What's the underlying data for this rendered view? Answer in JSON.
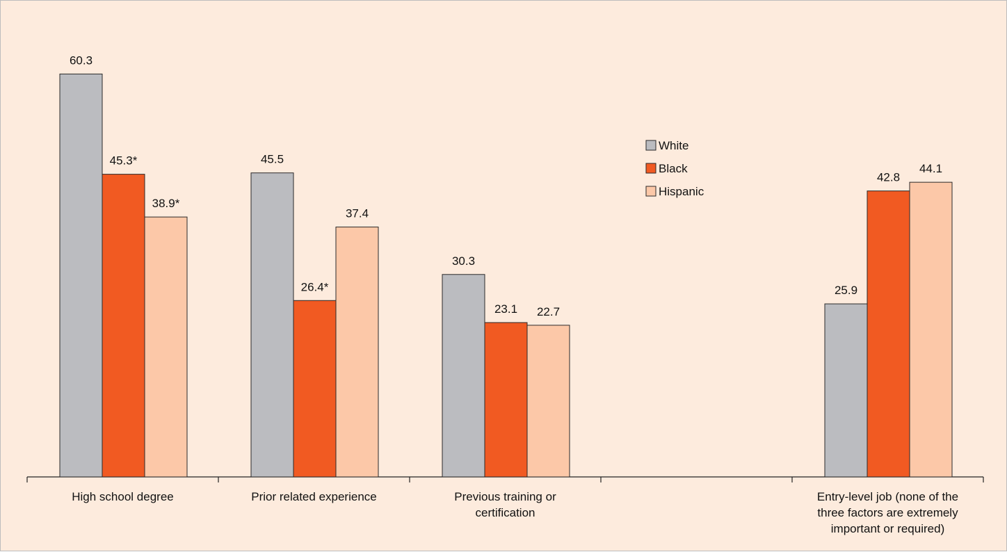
{
  "chart_data": {
    "type": "bar",
    "categories": [
      "High school degree",
      "Prior related experience",
      "Previous training or certification",
      "",
      "Entry-level job (none of the three factors are extremely important or required)"
    ],
    "category_label_lines": [
      [
        "High school degree"
      ],
      [
        "Prior related experience"
      ],
      [
        "Previous training or",
        "certification"
      ],
      [],
      [
        "Entry-level job (none of the",
        "three factors are extremely",
        "important or required)"
      ]
    ],
    "series": [
      {
        "name": "White",
        "color": "#bbbcc0",
        "values": [
          60.3,
          45.5,
          30.3,
          null,
          25.9
        ],
        "labels": [
          "60.3",
          "45.5",
          "30.3",
          "",
          "25.9"
        ]
      },
      {
        "name": "Black",
        "color": "#f15a22",
        "values": [
          45.3,
          26.4,
          23.1,
          null,
          42.8
        ],
        "labels": [
          "45.3*",
          "26.4*",
          "23.1",
          "",
          "42.8"
        ]
      },
      {
        "name": "Hispanic",
        "color": "#fcc8a8",
        "values": [
          38.9,
          37.4,
          22.7,
          null,
          44.1
        ],
        "labels": [
          "38.9*",
          "37.4",
          "22.7",
          "",
          "44.1"
        ]
      }
    ],
    "ylim": [
      0,
      64.3
    ],
    "legend_position": "top-center",
    "grid": false,
    "title": "",
    "xlabel": "",
    "ylabel": ""
  }
}
